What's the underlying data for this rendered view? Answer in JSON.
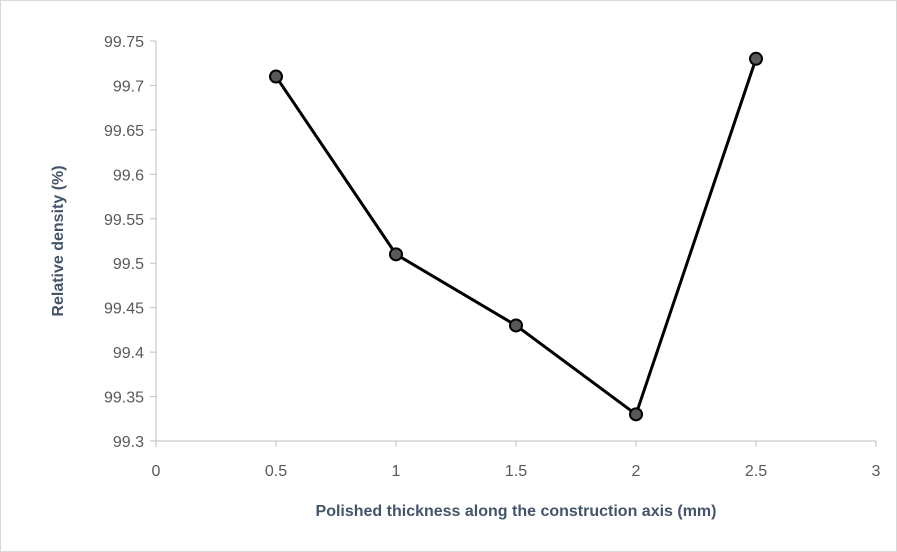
{
  "chart_data": {
    "type": "line",
    "title": "",
    "xlabel": "Polished thickness along the construction axis (mm)",
    "ylabel": "Relative density (%)",
    "xlim": [
      0,
      3
    ],
    "ylim": [
      99.3,
      99.75
    ],
    "x_ticks": [
      "0",
      "0.5",
      "1",
      "1.5",
      "2",
      "2.5",
      "3"
    ],
    "y_ticks": [
      "99.3",
      "99.35",
      "99.4",
      "99.45",
      "99.5",
      "99.55",
      "99.6",
      "99.65",
      "99.7",
      "99.75"
    ],
    "grid": false,
    "legend": "none",
    "series": [
      {
        "x": [
          0.5,
          1,
          1.5,
          2,
          2.5
        ],
        "values": [
          99.71,
          99.51,
          99.43,
          99.33,
          99.73
        ],
        "color": "#000000",
        "marker_fill": "#595959"
      }
    ]
  }
}
